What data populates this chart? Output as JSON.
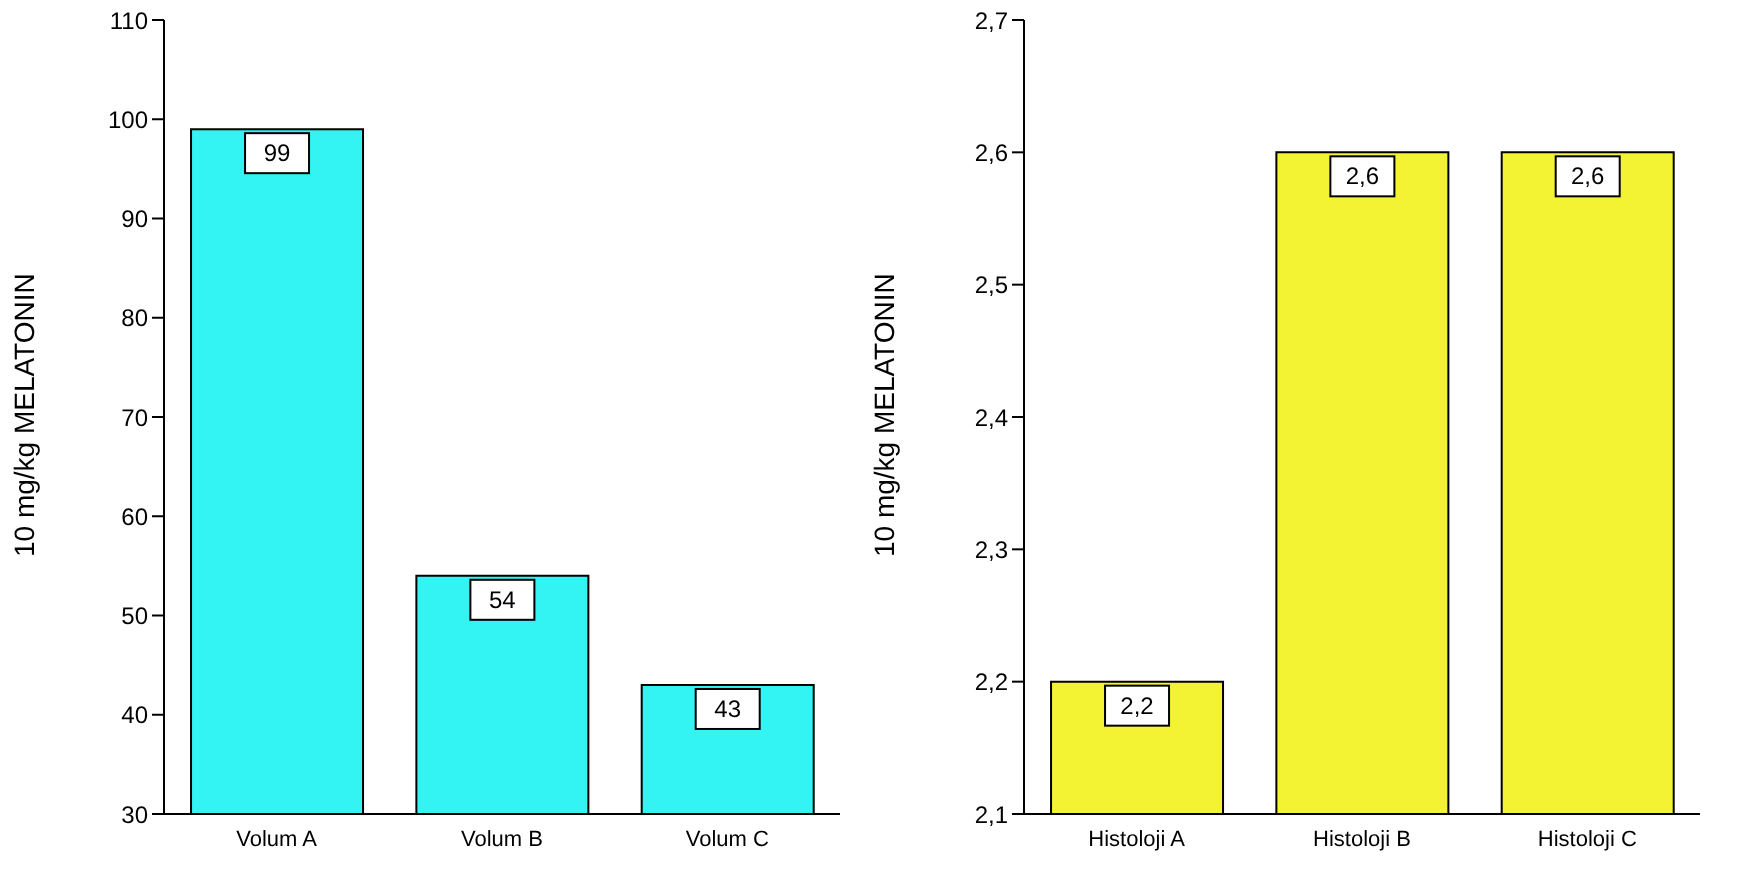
{
  "chart_data": [
    {
      "type": "bar",
      "ylabel": "10 mg/kg MELATONIN",
      "categories": [
        "Volum A",
        "Volum B",
        "Volum C"
      ],
      "values": [
        99,
        54,
        43
      ],
      "color": "#33f3f3",
      "ylim": [
        30,
        110
      ],
      "yticks": [
        30,
        40,
        50,
        60,
        70,
        80,
        90,
        100,
        110
      ],
      "data_labels": true,
      "grid": false,
      "legend": false
    },
    {
      "type": "bar",
      "ylabel": "10 mg/kg MELATONIN",
      "categories": [
        "Histoloji A",
        "Histoloji B",
        "Histoloji C"
      ],
      "values": [
        2.2,
        2.6,
        2.6
      ],
      "value_labels": [
        "2,2",
        "2,6",
        "2,6"
      ],
      "color": "#f3f333",
      "ylim": [
        2.1,
        2.7
      ],
      "yticks": [
        {
          "value": 2.1,
          "label": "2,1"
        },
        {
          "value": 2.2,
          "label": "2,2"
        },
        {
          "value": 2.3,
          "label": "2,3"
        },
        {
          "value": 2.4,
          "label": "2,4"
        },
        {
          "value": 2.5,
          "label": "2,5"
        },
        {
          "value": 2.6,
          "label": "2,6"
        },
        {
          "value": 2.7,
          "label": "2,7"
        }
      ],
      "grid": false,
      "legend": false
    }
  ]
}
